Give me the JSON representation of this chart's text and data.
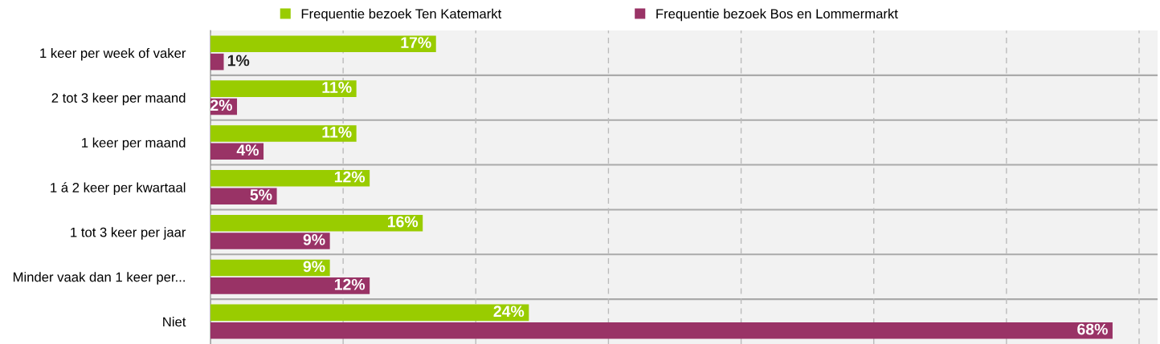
{
  "chart_data": {
    "type": "bar",
    "orientation": "horizontal",
    "categories": [
      "1 keer per week of vaker",
      "2 tot 3 keer per maand",
      "1 keer per maand",
      "1 á 2 keer per kwartaal",
      "1 tot 3 keer per jaar",
      "Minder vaak dan 1 keer per...",
      "Niet"
    ],
    "series": [
      {
        "name": "Frequentie bezoek Ten Katemarkt",
        "color": "#99cc00",
        "values": [
          17,
          11,
          11,
          12,
          16,
          9,
          24
        ],
        "value_labels": [
          "17%",
          "11%",
          "11%",
          "12%",
          "16%",
          "9%",
          "24%"
        ]
      },
      {
        "name": "Frequentie bezoek Bos en Lommermarkt",
        "color": "#993366",
        "values": [
          1,
          2,
          4,
          5,
          9,
          12,
          68
        ],
        "value_labels": [
          "1%",
          "2%",
          "4%",
          "5%",
          "9%",
          "12%",
          "68%"
        ]
      }
    ],
    "grid": "x",
    "legend": "top"
  }
}
